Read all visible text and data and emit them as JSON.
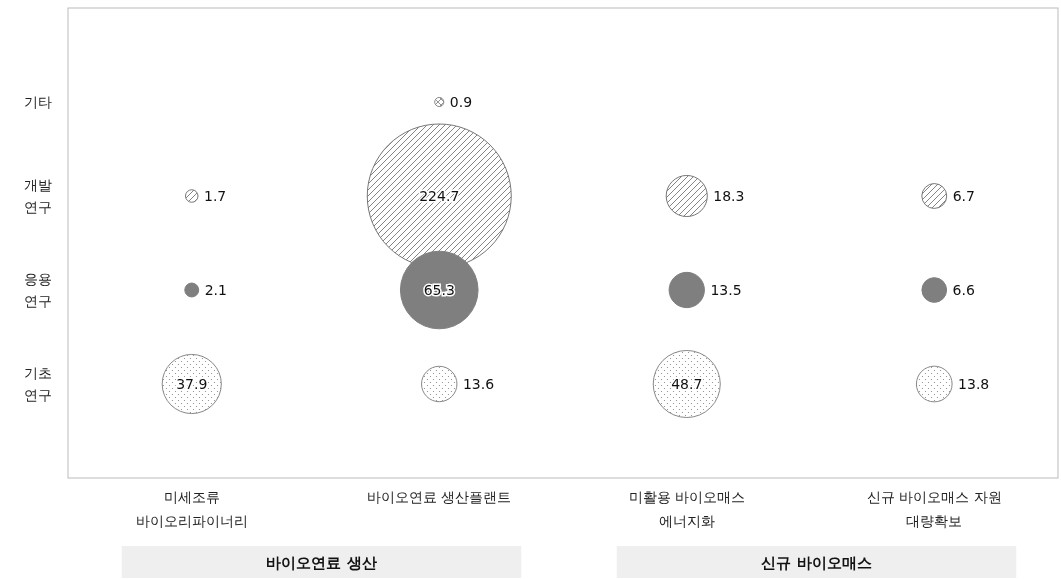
{
  "chart_data": {
    "type": "heatmap",
    "categories": [
      "미세조류\n바이오리파이너리",
      "바이오연료 생산플랜트",
      "미활용 바이오매스\n에너지화",
      "신규 바이오매스 자원\n대량확보"
    ],
    "y_categories": [
      "기타",
      "개발\n연구",
      "응용\n연구",
      "기초\n연구"
    ],
    "cells": [
      [
        null,
        0.9,
        null,
        null
      ],
      [
        1.7,
        224.7,
        18.3,
        6.7
      ],
      [
        2.1,
        65.3,
        13.5,
        6.6
      ],
      [
        37.9,
        13.6,
        48.7,
        13.8
      ]
    ],
    "data_labels": true,
    "grid": false,
    "legend": false,
    "annotations": [
      "바이오연료 생산",
      "신규 바이오매스"
    ]
  }
}
